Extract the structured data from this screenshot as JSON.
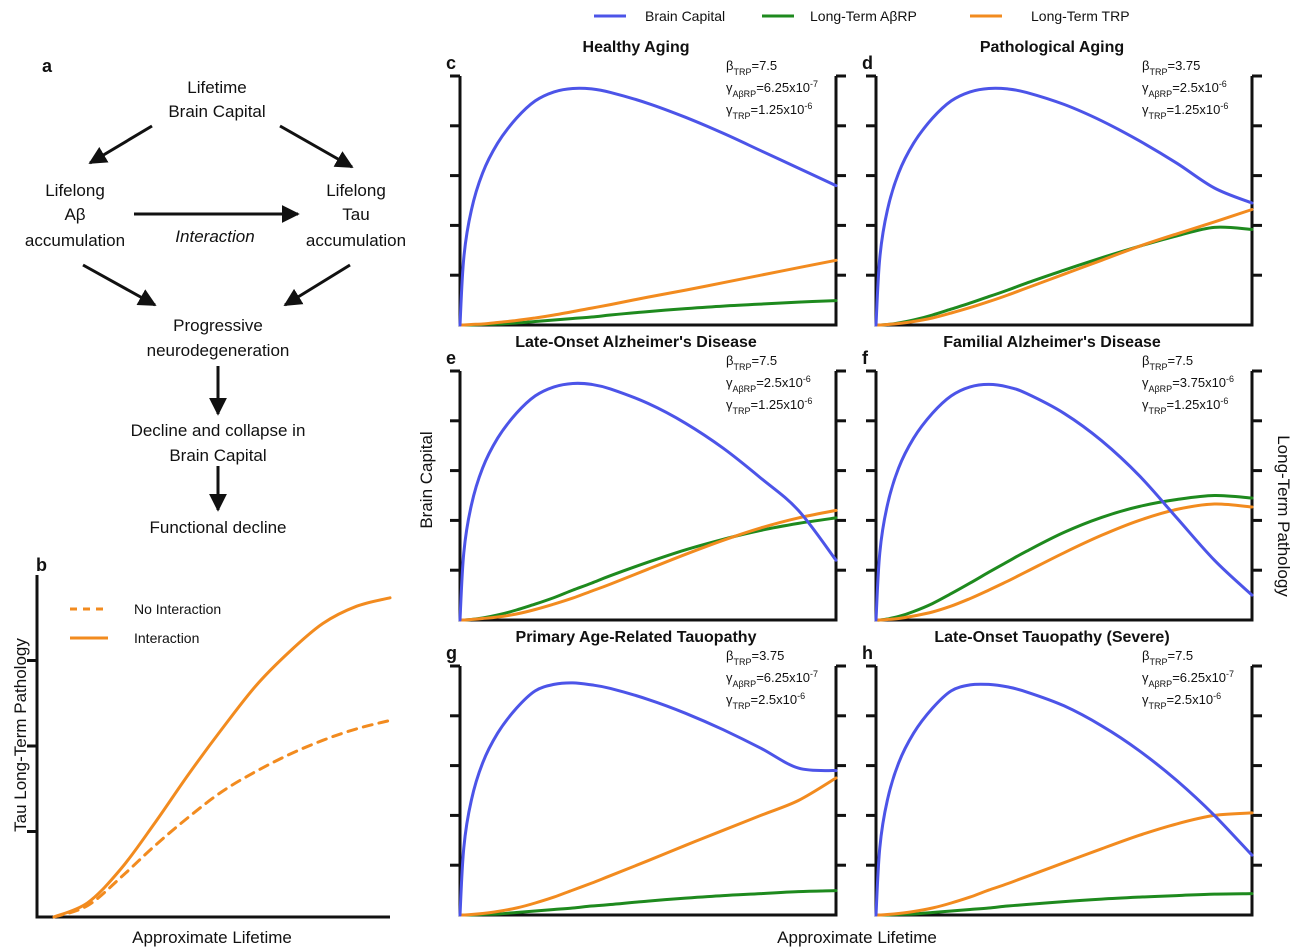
{
  "colors": {
    "brain_capital": "#4c54e8",
    "abrp": "#1e8a1e",
    "trp": "#f28b1f",
    "ink": "#111111"
  },
  "legend": [
    "Brain Capital",
    "Long-Term AβRP",
    "Long-Term TRP"
  ],
  "panel_a": {
    "letter": "a",
    "top": [
      "Lifetime",
      "Brain Capital"
    ],
    "left": [
      "Lifelong",
      "Aβ",
      "accumulation"
    ],
    "right": [
      "Lifelong",
      "Tau",
      "accumulation"
    ],
    "interaction": "Interaction",
    "mid": [
      "Progressive",
      "neurodegeneration"
    ],
    "decline": [
      "Decline and collapse in",
      "Brain Capital"
    ],
    "functional": "Functional decline"
  },
  "panel_b": {
    "letter": "b",
    "ylabel": "Tau Long-Term Pathology",
    "xlabel": "Approximate Lifetime",
    "legend": [
      "No Interaction",
      "Interaction"
    ]
  },
  "grid": {
    "shared_ylabel_left": "Brain Capital",
    "shared_ylabel_right": "Long-Term Pathology",
    "shared_xlabel": "Approximate Lifetime"
  },
  "chart_data": [
    {
      "panel": "b",
      "type": "line",
      "xlabel": "Approximate Lifetime",
      "ylabel": "Tau Long-Term Pathology",
      "x": [
        0,
        0.1,
        0.2,
        0.3,
        0.4,
        0.5,
        0.6,
        0.7,
        0.8,
        0.9,
        1.0
      ],
      "series": [
        {
          "name": "No Interaction",
          "values": [
            0,
            0.04,
            0.14,
            0.25,
            0.35,
            0.44,
            0.51,
            0.57,
            0.62,
            0.66,
            0.69
          ]
        },
        {
          "name": "Interaction",
          "values": [
            0,
            0.05,
            0.17,
            0.33,
            0.5,
            0.66,
            0.81,
            0.93,
            1.03,
            1.09,
            1.12
          ]
        }
      ],
      "ylim": [
        0,
        1.2
      ]
    },
    {
      "panel": "c",
      "type": "line",
      "title": "Healthy Aging",
      "params": {
        "beta": "7.5",
        "gamma_ab": "6.25x10",
        "gamma_ab_exp": "-7",
        "gamma_t": "1.25x10",
        "gamma_t_exp": "-6"
      },
      "x": [
        0,
        0.01,
        0.03,
        0.06,
        0.1,
        0.15,
        0.2,
        0.25,
        0.3,
        0.35,
        0.4,
        0.5,
        0.6,
        0.7,
        0.8,
        0.9,
        1.0
      ],
      "series": [
        {
          "name": "Brain Capital",
          "values": [
            0,
            1.35,
            2.3,
            3.05,
            3.65,
            4.15,
            4.5,
            4.68,
            4.75,
            4.74,
            4.67,
            4.45,
            4.17,
            3.85,
            3.5,
            3.15,
            2.8
          ]
        },
        {
          "name": "Long-Term AβRP",
          "values": [
            0,
            0,
            0,
            0.01,
            0.02,
            0.04,
            0.07,
            0.1,
            0.13,
            0.16,
            0.2,
            0.27,
            0.33,
            0.38,
            0.42,
            0.46,
            0.49
          ]
        },
        {
          "name": "Long-Term TRP",
          "values": [
            0,
            0,
            0.01,
            0.02,
            0.05,
            0.09,
            0.14,
            0.2,
            0.27,
            0.34,
            0.41,
            0.56,
            0.7,
            0.85,
            1.0,
            1.15,
            1.3
          ]
        }
      ],
      "ylim": [
        0,
        5
      ]
    },
    {
      "panel": "d",
      "type": "line",
      "title": "Pathological Aging",
      "params": {
        "beta": "3.75",
        "gamma_ab": "2.5x10",
        "gamma_ab_exp": "-6",
        "gamma_t": "1.25x10",
        "gamma_t_exp": "-6"
      },
      "x": [
        0,
        0.01,
        0.03,
        0.06,
        0.1,
        0.15,
        0.2,
        0.25,
        0.3,
        0.35,
        0.4,
        0.5,
        0.6,
        0.7,
        0.8,
        0.9,
        1.0
      ],
      "series": [
        {
          "name": "Brain Capital",
          "values": [
            0,
            1.35,
            2.3,
            3.05,
            3.65,
            4.15,
            4.5,
            4.68,
            4.75,
            4.74,
            4.67,
            4.43,
            4.1,
            3.7,
            3.25,
            2.75,
            2.45
          ]
        },
        {
          "name": "Long-Term AβRP",
          "values": [
            0,
            0,
            0.01,
            0.04,
            0.1,
            0.2,
            0.32,
            0.44,
            0.57,
            0.7,
            0.84,
            1.1,
            1.35,
            1.58,
            1.79,
            1.96,
            1.92
          ]
        },
        {
          "name": "Long-Term TRP",
          "values": [
            0,
            0,
            0.01,
            0.03,
            0.07,
            0.14,
            0.24,
            0.35,
            0.47,
            0.6,
            0.74,
            1.02,
            1.3,
            1.58,
            1.83,
            2.07,
            2.32
          ]
        }
      ],
      "ylim": [
        0,
        5
      ]
    },
    {
      "panel": "e",
      "type": "line",
      "title": "Late-Onset Alzheimer's Disease",
      "params": {
        "beta": "7.5",
        "gamma_ab": "2.5x10",
        "gamma_ab_exp": "-6",
        "gamma_t": "1.25x10",
        "gamma_t_exp": "-6"
      },
      "x": [
        0,
        0.01,
        0.03,
        0.06,
        0.1,
        0.15,
        0.2,
        0.25,
        0.3,
        0.35,
        0.4,
        0.5,
        0.6,
        0.7,
        0.8,
        0.9,
        1.0
      ],
      "series": [
        {
          "name": "Brain Capital",
          "values": [
            0,
            1.35,
            2.3,
            3.05,
            3.65,
            4.15,
            4.5,
            4.68,
            4.75,
            4.73,
            4.64,
            4.35,
            3.95,
            3.45,
            2.85,
            2.2,
            1.2
          ]
        },
        {
          "name": "Long-Term AβRP",
          "values": [
            0,
            0,
            0.01,
            0.04,
            0.1,
            0.2,
            0.32,
            0.45,
            0.6,
            0.74,
            0.89,
            1.16,
            1.41,
            1.62,
            1.8,
            1.94,
            2.05
          ]
        },
        {
          "name": "Long-Term TRP",
          "values": [
            0,
            0,
            0.01,
            0.03,
            0.06,
            0.12,
            0.21,
            0.32,
            0.44,
            0.58,
            0.72,
            1.02,
            1.32,
            1.6,
            1.85,
            2.05,
            2.2
          ]
        }
      ],
      "ylim": [
        0,
        5
      ]
    },
    {
      "panel": "f",
      "type": "line",
      "title": "Familial Alzheimer's Disease",
      "params": {
        "beta": "7.5",
        "gamma_ab": "3.75x10",
        "gamma_ab_exp": "-6",
        "gamma_t": "1.25x10",
        "gamma_t_exp": "-6"
      },
      "x": [
        0,
        0.01,
        0.03,
        0.06,
        0.1,
        0.15,
        0.2,
        0.25,
        0.3,
        0.35,
        0.4,
        0.5,
        0.6,
        0.7,
        0.8,
        0.9,
        1.0
      ],
      "series": [
        {
          "name": "Brain Capital",
          "values": [
            0,
            1.35,
            2.3,
            3.05,
            3.65,
            4.15,
            4.5,
            4.68,
            4.73,
            4.68,
            4.55,
            4.15,
            3.6,
            2.9,
            2.05,
            1.2,
            0.5
          ]
        },
        {
          "name": "Long-Term AβRP",
          "values": [
            0,
            0,
            0.02,
            0.07,
            0.17,
            0.33,
            0.53,
            0.74,
            0.96,
            1.17,
            1.38,
            1.76,
            2.06,
            2.28,
            2.42,
            2.5,
            2.45
          ]
        },
        {
          "name": "Long-Term TRP",
          "values": [
            0,
            0,
            0.01,
            0.03,
            0.08,
            0.16,
            0.28,
            0.43,
            0.6,
            0.78,
            0.97,
            1.35,
            1.7,
            2.0,
            2.22,
            2.33,
            2.27
          ]
        }
      ],
      "ylim": [
        0,
        5
      ]
    },
    {
      "panel": "g",
      "type": "line",
      "title": "Primary Age-Related Tauopathy",
      "params": {
        "beta": "3.75",
        "gamma_ab": "6.25x10",
        "gamma_ab_exp": "-7",
        "gamma_t": "2.5x10",
        "gamma_t_exp": "-6"
      },
      "x": [
        0,
        0.01,
        0.03,
        0.06,
        0.1,
        0.15,
        0.2,
        0.25,
        0.3,
        0.35,
        0.4,
        0.5,
        0.6,
        0.7,
        0.8,
        0.9,
        1.0
      ],
      "series": [
        {
          "name": "Brain Capital",
          "values": [
            0,
            1.35,
            2.3,
            3.05,
            3.65,
            4.15,
            4.5,
            4.63,
            4.66,
            4.62,
            4.55,
            4.33,
            4.05,
            3.72,
            3.35,
            2.95,
            2.9
          ]
        },
        {
          "name": "Long-Term AβRP",
          "values": [
            0,
            0,
            0,
            0.01,
            0.02,
            0.05,
            0.08,
            0.11,
            0.14,
            0.18,
            0.21,
            0.28,
            0.34,
            0.39,
            0.43,
            0.47,
            0.49
          ]
        },
        {
          "name": "Long-Term TRP",
          "values": [
            0,
            0,
            0.01,
            0.03,
            0.07,
            0.14,
            0.24,
            0.36,
            0.5,
            0.64,
            0.79,
            1.09,
            1.4,
            1.7,
            2.0,
            2.3,
            2.75
          ]
        }
      ],
      "ylim": [
        0,
        5
      ]
    },
    {
      "panel": "h",
      "type": "line",
      "title": "Late-Onset Tauopathy (Severe)",
      "params": {
        "beta": "7.5",
        "gamma_ab": "6.25x10",
        "gamma_ab_exp": "-7",
        "gamma_t": "2.5x10",
        "gamma_t_exp": "-6"
      },
      "x": [
        0,
        0.01,
        0.03,
        0.06,
        0.1,
        0.15,
        0.2,
        0.25,
        0.3,
        0.35,
        0.4,
        0.5,
        0.6,
        0.7,
        0.8,
        0.9,
        1.0
      ],
      "series": [
        {
          "name": "Brain Capital",
          "values": [
            0,
            1.35,
            2.3,
            3.05,
            3.65,
            4.15,
            4.5,
            4.62,
            4.63,
            4.58,
            4.48,
            4.2,
            3.8,
            3.3,
            2.7,
            2.0,
            1.2
          ]
        },
        {
          "name": "Long-Term AβRP",
          "values": [
            0,
            0,
            0,
            0.01,
            0.02,
            0.05,
            0.08,
            0.11,
            0.14,
            0.18,
            0.21,
            0.27,
            0.32,
            0.36,
            0.39,
            0.42,
            0.43
          ]
        },
        {
          "name": "Long-Term TRP",
          "values": [
            0,
            0,
            0.01,
            0.03,
            0.07,
            0.14,
            0.24,
            0.36,
            0.5,
            0.63,
            0.77,
            1.05,
            1.33,
            1.6,
            1.83,
            2.0,
            2.05
          ]
        }
      ],
      "ylim": [
        0,
        5
      ]
    }
  ]
}
